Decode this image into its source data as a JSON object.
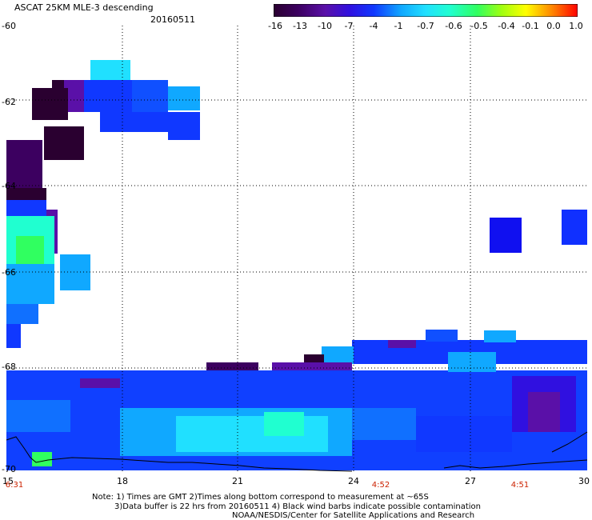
{
  "header": {
    "title": "ASCAT 25KM MLE-3 descending",
    "date": "20160511"
  },
  "colorbar": {
    "labels": [
      "-16",
      "-13",
      "-10",
      "-7",
      "-4",
      "-1",
      "-0.7",
      "-0.6",
      "-0.5",
      "-0.4",
      "-0.1",
      "0.0",
      "1.0"
    ],
    "colors": [
      "#2a0030",
      "#3c0060",
      "#5a10a8",
      "#3010e0",
      "#1038ff",
      "#1070ff",
      "#10a8ff",
      "#20e0ff",
      "#20ffd0",
      "#30ff60",
      "#a0ff10",
      "#ffff00",
      "#ffb000",
      "#ff5000",
      "#ff0000"
    ]
  },
  "axes": {
    "y_labels": [
      "-60",
      "-62",
      "-64",
      "-66",
      "-68",
      "-70"
    ],
    "x_labels": [
      "15",
      "18",
      "21",
      "24",
      "27",
      "30"
    ],
    "time_labels": [
      "6:31",
      "4:52",
      "4:51"
    ]
  },
  "notes": [
    "Note: 1) Times are GMT 2)Times along bottom correspond to measurement at ~65S",
    "3)Data buffer is 22 hrs from 20160511 4) Black wind barbs indicate possible contamination",
    "NOAA/NESDIS/Center for Satellite Applications and Research"
  ]
}
